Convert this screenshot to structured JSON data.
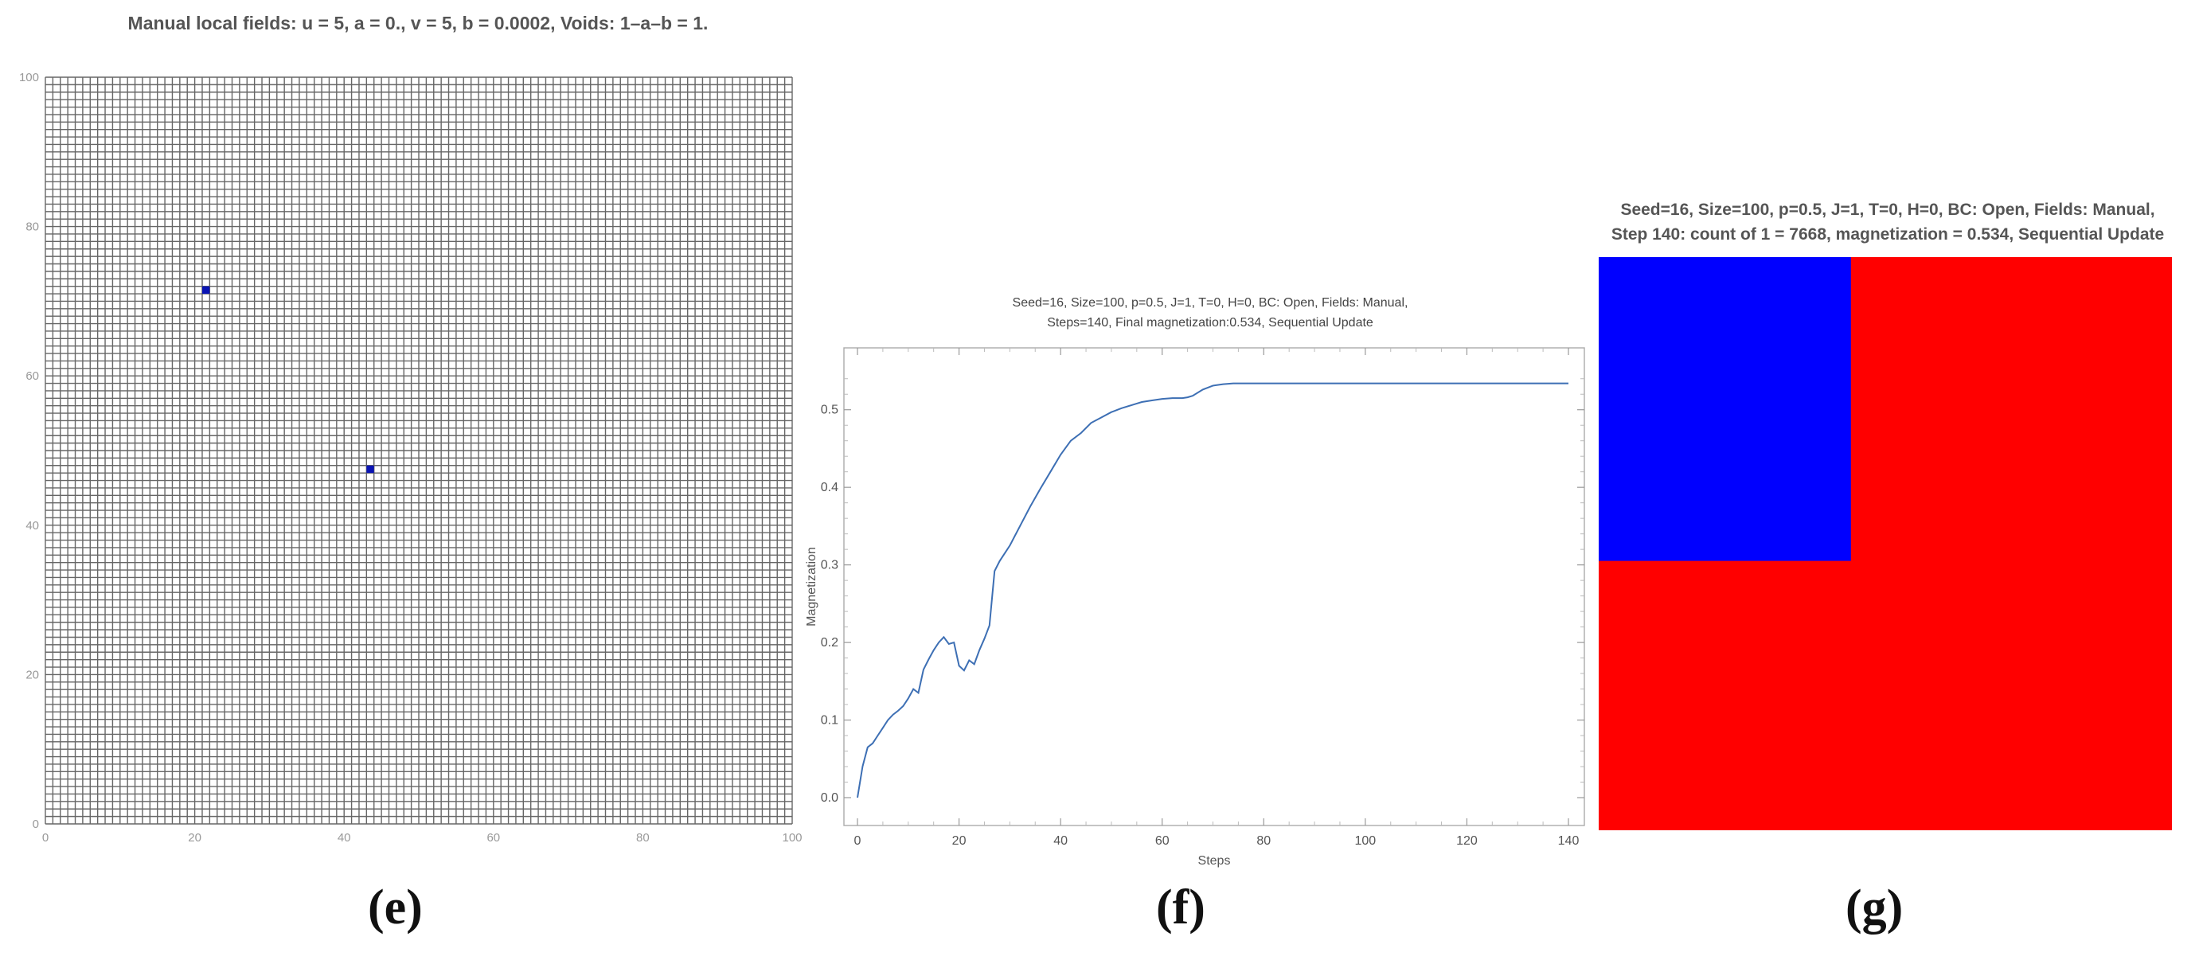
{
  "panels": {
    "e": {
      "title": "Manual local fields: u = 5, a = 0., v = 5, b = 0.0002, Voids: 1–a–b = 1.",
      "label": "(e)"
    },
    "f": {
      "title_line1": "Seed=16, Size=100, p=0.5, J=1, T=0, H=0, BC: Open, Fields: Manual,",
      "title_line2": "Steps=140, Final magnetization:0.534, Sequential Update",
      "label": "(f)"
    },
    "g": {
      "title_line1": "Seed=16, Size=100, p=0.5, J=1, T=0, H=0, BC: Open, Fields: Manual,",
      "title_line2": "Step 140: count of 1 = 7668, magnetization = 0.534, Sequential Update",
      "label": "(g)"
    }
  },
  "chart_data": [
    {
      "type": "heatmap",
      "panel": "e",
      "title": "Manual local fields: u = 5, a = 0., v = 5, b = 0.0002, Voids: 1–a–b = 1.",
      "grid_size": 100,
      "xlim": [
        0,
        100
      ],
      "ylim": [
        0,
        100
      ],
      "xticks": [
        0,
        20,
        40,
        60,
        80,
        100
      ],
      "yticks": [
        0,
        20,
        40,
        60,
        80,
        100
      ],
      "background_color": "#ffffff",
      "grid_color": "#666666",
      "marked_cells": [
        {
          "x": 21,
          "y": 71,
          "color": "#0a14b4"
        },
        {
          "x": 43,
          "y": 47,
          "color": "#0a14b4"
        }
      ]
    },
    {
      "type": "line",
      "panel": "f",
      "xlabel": "Steps",
      "ylabel": "Magnetization",
      "xlim": [
        0,
        140
      ],
      "ylim": [
        0,
        0.55
      ],
      "xticks": [
        0,
        20,
        40,
        60,
        80,
        100,
        120,
        140
      ],
      "yticks": [
        0.0,
        0.1,
        0.2,
        0.3,
        0.4,
        0.5
      ],
      "ytick_labels": [
        "0.0",
        "0.1",
        "0.2",
        "0.3",
        "0.4",
        "0.5"
      ],
      "line_color": "#3d6fb4",
      "x": [
        0,
        1,
        2,
        3,
        4,
        5,
        6,
        7,
        8,
        9,
        10,
        11,
        12,
        13,
        14,
        15,
        16,
        17,
        18,
        19,
        20,
        21,
        22,
        23,
        24,
        25,
        26,
        27,
        28,
        30,
        32,
        34,
        36,
        38,
        40,
        42,
        44,
        46,
        48,
        50,
        52,
        54,
        56,
        58,
        60,
        62,
        64,
        65,
        66,
        68,
        70,
        72,
        74,
        76,
        78,
        80,
        90,
        100,
        110,
        120,
        130,
        140
      ],
      "y": [
        0.0,
        0.04,
        0.065,
        0.07,
        0.08,
        0.09,
        0.1,
        0.107,
        0.112,
        0.118,
        0.128,
        0.14,
        0.135,
        0.165,
        0.178,
        0.19,
        0.2,
        0.207,
        0.198,
        0.2,
        0.17,
        0.164,
        0.177,
        0.172,
        0.19,
        0.205,
        0.222,
        0.292,
        0.305,
        0.325,
        0.35,
        0.375,
        0.398,
        0.42,
        0.442,
        0.46,
        0.47,
        0.483,
        0.49,
        0.497,
        0.502,
        0.506,
        0.51,
        0.512,
        0.514,
        0.515,
        0.515,
        0.516,
        0.518,
        0.526,
        0.531,
        0.533,
        0.534,
        0.534,
        0.534,
        0.534,
        0.534,
        0.534,
        0.534,
        0.534,
        0.534,
        0.534
      ]
    },
    {
      "type": "heatmap",
      "panel": "g",
      "title": "Seed=16, Size=100, p=0.5, J=1, T=0, H=0, BC: Open, Fields: Manual, Step 140: count of 1 = 7668, magnetization = 0.534, Sequential Update",
      "grid_size": 100,
      "regions": [
        {
          "state": -1,
          "color": "#0000ff",
          "x_range": [
            0,
            44
          ],
          "y_range": [
            0,
            53
          ]
        },
        {
          "state": 1,
          "color": "#ff0000",
          "x_range": [
            0,
            100
          ],
          "y_range": [
            0,
            100
          ]
        }
      ]
    }
  ]
}
